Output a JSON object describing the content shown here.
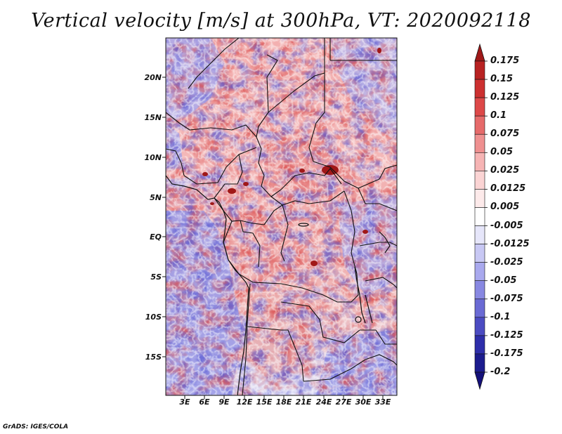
{
  "title": "Vertical velocity [m/s] at 300hPa, VT: 2020092118",
  "credit": "GrADS: IGES/COLA",
  "map": {
    "lat_range": [
      -20,
      25
    ],
    "lon_range": [
      0,
      35
    ],
    "lat_ticks": [
      "20N",
      "15N",
      "10N",
      "5N",
      "EQ",
      "5S",
      "10S",
      "15S"
    ],
    "lon_ticks": [
      "3E",
      "6E",
      "9E",
      "12E",
      "15E",
      "18E",
      "21E",
      "24E",
      "27E",
      "30E",
      "33E"
    ],
    "field": "vertical velocity",
    "units": "m/s",
    "level": "300hPa"
  },
  "colorbar": {
    "labels": [
      "0.175",
      "0.15",
      "0.125",
      "0.1",
      "0.075",
      "0.05",
      "0.025",
      "0.0125",
      "0.005",
      "-0.005",
      "-0.0125",
      "-0.025",
      "-0.05",
      "-0.075",
      "-0.1",
      "-0.125",
      "-0.175",
      "-0.2"
    ],
    "colors": [
      "#a01818",
      "#b82222",
      "#cc3030",
      "#dd4848",
      "#e66a6a",
      "#ef9090",
      "#f6b4b4",
      "#fbd4d4",
      "#fdeaea",
      "#ffffff",
      "#e6e6fa",
      "#c8c8f4",
      "#a9a9ee",
      "#8888e2",
      "#6a6ad4",
      "#4b4bc2",
      "#2e2eaa",
      "#1c1c8e",
      "#14107a"
    ]
  }
}
